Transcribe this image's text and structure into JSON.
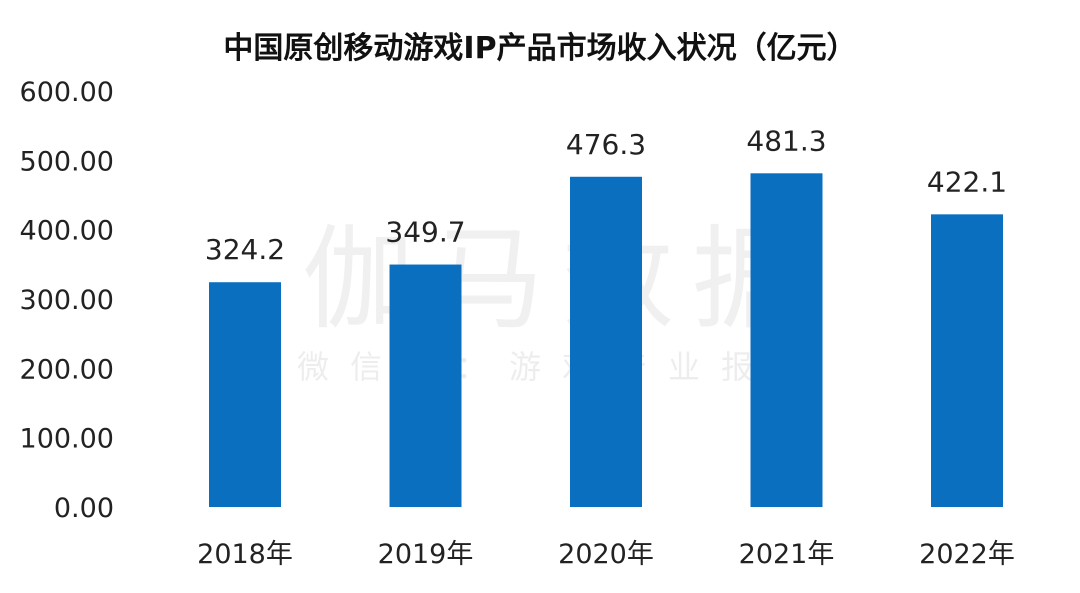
{
  "chart_data": {
    "type": "bar",
    "title": "中国原创移动游戏IP产品市场收入状况（亿元）",
    "categories": [
      "2018年",
      "2019年",
      "2020年",
      "2021年",
      "2022年"
    ],
    "values": [
      324.2,
      349.7,
      476.3,
      481.3,
      422.1
    ],
    "value_labels": [
      "324.2",
      "349.7",
      "476.3",
      "481.3",
      "422.1"
    ],
    "y_ticks": [
      "0.00",
      "100.00",
      "200.00",
      "300.00",
      "400.00",
      "500.00",
      "600.00"
    ],
    "ylim": [
      0,
      600
    ],
    "xlabel": "",
    "ylabel": "",
    "grid": false,
    "legend": "none",
    "bar_color": "#0B6FC0"
  },
  "watermark": {
    "main": "伽马数据",
    "sub": "微信号：游戏产业报告"
  }
}
